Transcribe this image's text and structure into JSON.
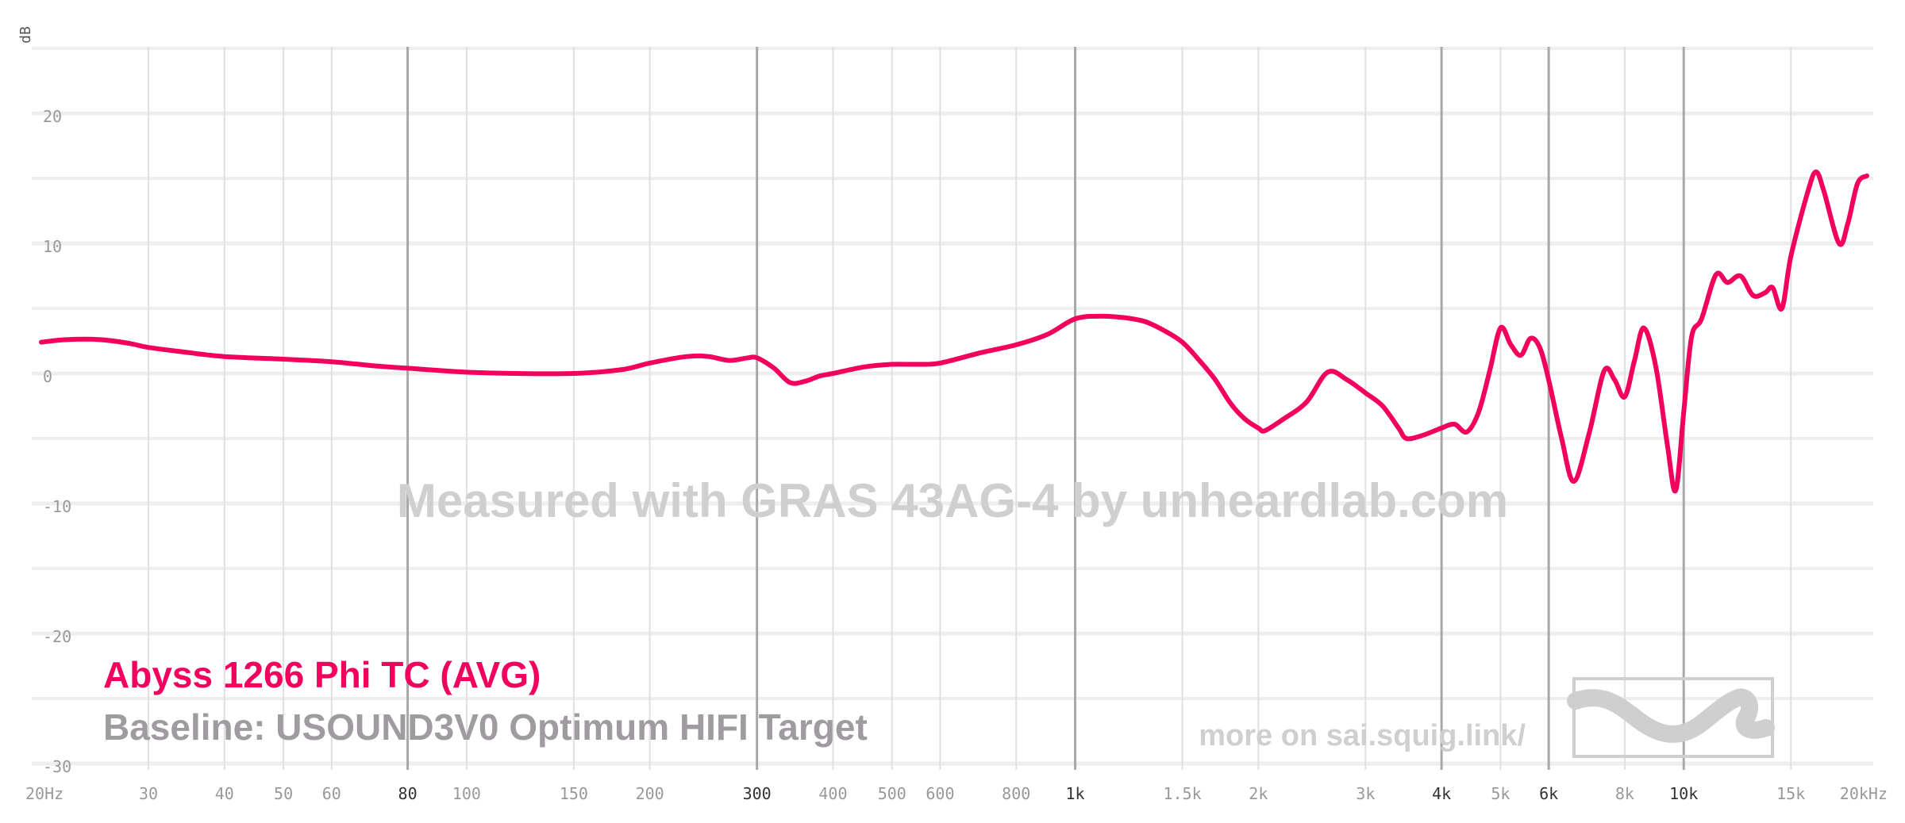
{
  "chart_data": {
    "type": "line",
    "x_scale": "log",
    "xlim": [
      20,
      20000
    ],
    "ylim": [
      -30,
      25
    ],
    "ylabel": "dB",
    "grid": true,
    "y_ticks": [
      {
        "value": 20,
        "label": "20"
      },
      {
        "value": 10,
        "label": "10"
      },
      {
        "value": 0,
        "label": "0"
      },
      {
        "value": -10,
        "label": "-10"
      },
      {
        "value": -20,
        "label": "-20"
      },
      {
        "value": -30,
        "label": "-30"
      }
    ],
    "x_ticks": [
      {
        "value": 20,
        "label": "20Hz",
        "major": false
      },
      {
        "value": 30,
        "label": "30",
        "major": false
      },
      {
        "value": 40,
        "label": "40",
        "major": false
      },
      {
        "value": 50,
        "label": "50",
        "major": false
      },
      {
        "value": 60,
        "label": "60",
        "major": false
      },
      {
        "value": 80,
        "label": "80",
        "major": true
      },
      {
        "value": 100,
        "label": "100",
        "major": false
      },
      {
        "value": 150,
        "label": "150",
        "major": false
      },
      {
        "value": 200,
        "label": "200",
        "major": false
      },
      {
        "value": 300,
        "label": "300",
        "major": true
      },
      {
        "value": 400,
        "label": "400",
        "major": false
      },
      {
        "value": 500,
        "label": "500",
        "major": false
      },
      {
        "value": 600,
        "label": "600",
        "major": false
      },
      {
        "value": 800,
        "label": "800",
        "major": false
      },
      {
        "value": 1000,
        "label": "1k",
        "major": true
      },
      {
        "value": 1500,
        "label": "1.5k",
        "major": false
      },
      {
        "value": 2000,
        "label": "2k",
        "major": false
      },
      {
        "value": 3000,
        "label": "3k",
        "major": false
      },
      {
        "value": 4000,
        "label": "4k",
        "major": true
      },
      {
        "value": 5000,
        "label": "5k",
        "major": false
      },
      {
        "value": 6000,
        "label": "6k",
        "major": true
      },
      {
        "value": 8000,
        "label": "8k",
        "major": false
      },
      {
        "value": 10000,
        "label": "10k",
        "major": true
      },
      {
        "value": 15000,
        "label": "15k",
        "major": false
      },
      {
        "value": 20000,
        "label": "20kHz",
        "major": false
      }
    ],
    "series": [
      {
        "name": "Abyss 1266 Phi TC (AVG)",
        "color": "#f3005f",
        "points": [
          [
            20,
            2.4
          ],
          [
            22,
            2.6
          ],
          [
            25,
            2.6
          ],
          [
            28,
            2.3
          ],
          [
            30,
            2.0
          ],
          [
            35,
            1.6
          ],
          [
            40,
            1.3
          ],
          [
            50,
            1.1
          ],
          [
            60,
            0.9
          ],
          [
            70,
            0.6
          ],
          [
            80,
            0.4
          ],
          [
            100,
            0.1
          ],
          [
            120,
            0.0
          ],
          [
            150,
            0.0
          ],
          [
            180,
            0.3
          ],
          [
            200,
            0.8
          ],
          [
            230,
            1.3
          ],
          [
            250,
            1.3
          ],
          [
            270,
            1.0
          ],
          [
            290,
            1.2
          ],
          [
            300,
            1.2
          ],
          [
            320,
            0.4
          ],
          [
            340,
            -0.7
          ],
          [
            360,
            -0.6
          ],
          [
            380,
            -0.2
          ],
          [
            400,
            0.0
          ],
          [
            450,
            0.5
          ],
          [
            500,
            0.7
          ],
          [
            550,
            0.7
          ],
          [
            600,
            0.8
          ],
          [
            700,
            1.6
          ],
          [
            800,
            2.2
          ],
          [
            900,
            3.0
          ],
          [
            1000,
            4.2
          ],
          [
            1100,
            4.4
          ],
          [
            1200,
            4.3
          ],
          [
            1300,
            4.0
          ],
          [
            1400,
            3.3
          ],
          [
            1500,
            2.4
          ],
          [
            1600,
            1.0
          ],
          [
            1700,
            -0.5
          ],
          [
            1800,
            -2.3
          ],
          [
            1900,
            -3.5
          ],
          [
            2000,
            -4.2
          ],
          [
            2050,
            -4.4
          ],
          [
            2200,
            -3.5
          ],
          [
            2400,
            -2.2
          ],
          [
            2600,
            0.1
          ],
          [
            2800,
            -0.5
          ],
          [
            3000,
            -1.5
          ],
          [
            3200,
            -2.5
          ],
          [
            3400,
            -4.2
          ],
          [
            3500,
            -5.0
          ],
          [
            3700,
            -4.8
          ],
          [
            3900,
            -4.4
          ],
          [
            4000,
            -4.2
          ],
          [
            4200,
            -3.9
          ],
          [
            4400,
            -4.5
          ],
          [
            4600,
            -3.0
          ],
          [
            4800,
            0.2
          ],
          [
            5000,
            3.5
          ],
          [
            5200,
            2.2
          ],
          [
            5400,
            1.4
          ],
          [
            5600,
            2.7
          ],
          [
            5800,
            2.0
          ],
          [
            6000,
            -0.5
          ],
          [
            6300,
            -5.0
          ],
          [
            6600,
            -8.3
          ],
          [
            7000,
            -4.5
          ],
          [
            7400,
            0.2
          ],
          [
            7700,
            -0.5
          ],
          [
            8000,
            -1.8
          ],
          [
            8300,
            1.0
          ],
          [
            8600,
            3.5
          ],
          [
            9000,
            0.5
          ],
          [
            9400,
            -5.5
          ],
          [
            9700,
            -9.0
          ],
          [
            10000,
            -3.0
          ],
          [
            10300,
            2.8
          ],
          [
            10700,
            4.2
          ],
          [
            11300,
            7.6
          ],
          [
            11800,
            7.0
          ],
          [
            12400,
            7.5
          ],
          [
            13000,
            6.0
          ],
          [
            13600,
            6.2
          ],
          [
            14000,
            6.6
          ],
          [
            14500,
            5.0
          ],
          [
            15000,
            9.0
          ],
          [
            16000,
            14.0
          ],
          [
            16500,
            15.5
          ],
          [
            17000,
            14.0
          ],
          [
            18000,
            10.0
          ],
          [
            18600,
            11.5
          ],
          [
            19300,
            14.6
          ],
          [
            20000,
            15.2
          ]
        ]
      }
    ]
  },
  "legend": {
    "title": "Abyss 1266 Phi TC (AVG)",
    "title_color": "#f3005f",
    "baseline": "Baseline: USOUND3V0 Optimum HIFI Target",
    "baseline_color": "#a09ba0"
  },
  "watermark": {
    "text": "Measured with GRAS 43AG-4 by unheardlab.com",
    "credit": "more on sai.squig.link/",
    "logo_icon": "squiglink-logo"
  }
}
